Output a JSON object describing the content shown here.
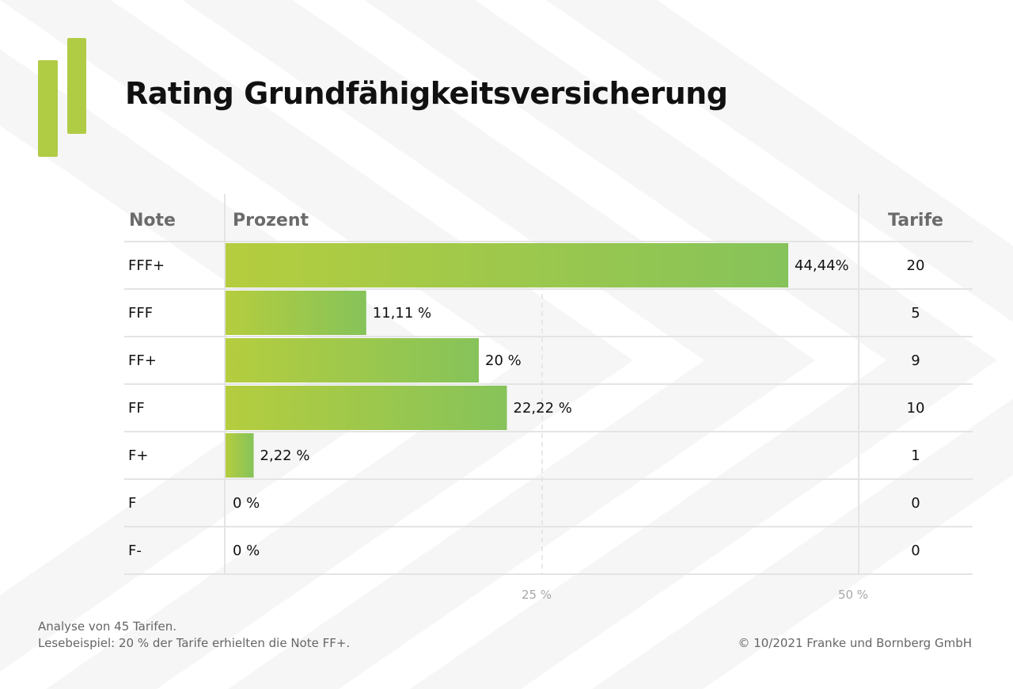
{
  "title": "Rating Grundfähigkeitsversicherung",
  "colors": {
    "accent": "#b0cc45",
    "bar_start": "#b5cd3e",
    "bar_end": "#86c35a",
    "grid": "#e4e4e4"
  },
  "chart_data": {
    "type": "bar",
    "orientation": "horizontal",
    "columns": {
      "rating": "Note",
      "percent": "Prozent",
      "count": "Tarife"
    },
    "categories": [
      "FFF+",
      "FFF",
      "FF+",
      "FF",
      "F+",
      "F",
      "F-"
    ],
    "values": [
      44.44,
      11.11,
      20,
      22.22,
      2.22,
      0,
      0
    ],
    "value_labels": [
      "44,44%",
      "11,11 %",
      "20 %",
      "22,22 %",
      "2,22 %",
      "0 %",
      "0 %"
    ],
    "counts": [
      "20",
      "5",
      "9",
      "10",
      "1",
      "0",
      "0"
    ],
    "xlim": [
      0,
      50
    ],
    "ticks": [
      25,
      50
    ],
    "tick_labels": [
      "25 %",
      "50 %"
    ],
    "grid": "dashed vertical line at 25 %"
  },
  "footer": {
    "note1": "Analyse von 45 Tarifen.",
    "note2": "Lesebeispiel: 20 % der Tarife erhielten die Note FF+.",
    "copyright": "© 10/2021 Franke und Bornberg GmbH"
  }
}
